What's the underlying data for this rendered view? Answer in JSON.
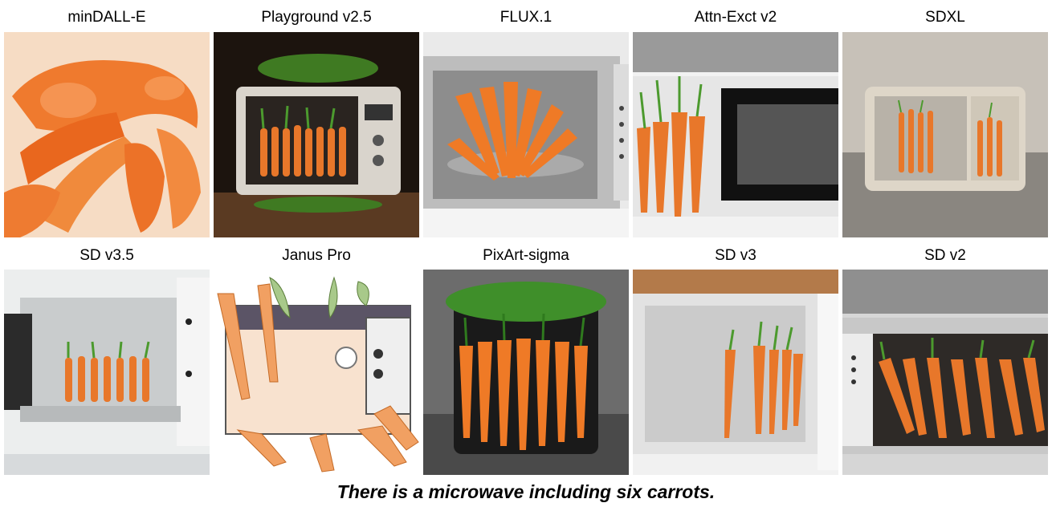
{
  "figure": {
    "caption": "There is a microwave including six carrots.",
    "rows": [
      [
        {
          "label": "minDALL-E"
        },
        {
          "label": "Playground v2.5"
        },
        {
          "label": "FLUX.1"
        },
        {
          "label": "Attn-Exct v2"
        },
        {
          "label": "SDXL"
        }
      ],
      [
        {
          "label": "SD v3.5"
        },
        {
          "label": "Janus Pro"
        },
        {
          "label": "PixArt-sigma"
        },
        {
          "label": "SD v3"
        },
        {
          "label": "SD v2"
        }
      ]
    ]
  },
  "colors": {
    "carrot": "#e8772a",
    "carrot_dark": "#c85a14",
    "leaf": "#3f8f2a",
    "microwave_white": "#ececec",
    "microwave_silver": "#c8c8c8"
  }
}
